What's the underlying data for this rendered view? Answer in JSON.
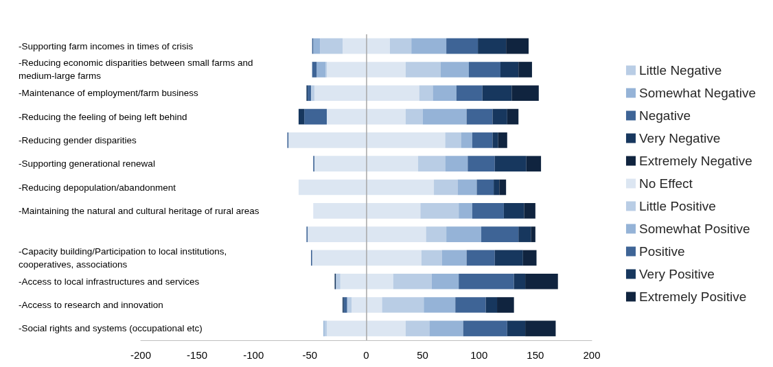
{
  "chart_data": {
    "type": "bar",
    "orientation": "horizontal",
    "stacked": true,
    "categories": [
      "-Supporting farm incomes in times of crisis",
      "-Reducing economic disparities between small farms and medium-large farms",
      "-Maintenance of employment/farm business",
      "-Reducing the feeling of being left behind",
      "-Reducing gender disparities",
      "-Supporting generational renewal",
      "-Reducing depopulation/abandonment",
      "-Maintaining the natural and cultural heritage of rural areas",
      null,
      "-Capacity building/Participation to local institutions, cooperatives, associations",
      "-Access to local infrastructures and services",
      "-Access to research and innovation",
      "-Social rights and systems (occupational etc)"
    ],
    "series": [
      {
        "color": "#dce6f2",
        "values": [
          -21,
          -35,
          -46,
          -35,
          -69,
          -46,
          -60,
          -47,
          -52,
          -48,
          -23,
          -13,
          -35
        ]
      },
      {
        "name": "Little Negative",
        "color": "#b9cde5",
        "values": [
          -20,
          -1,
          -3,
          0,
          0,
          0,
          0,
          0,
          0,
          0,
          -4,
          -4,
          -2
        ]
      },
      {
        "name": "Somewhat Negative",
        "color": "#95b3d7",
        "values": [
          -6,
          -8,
          0,
          0,
          0,
          0,
          0,
          0,
          0,
          0,
          0,
          0,
          -1
        ]
      },
      {
        "name": "Negative",
        "color": "#3e6496",
        "values": [
          -1,
          -4,
          -3,
          -20,
          -1,
          -1,
          0,
          0,
          -1,
          -1,
          0,
          -3,
          0
        ]
      },
      {
        "name": "Very Negative",
        "color": "#17375e",
        "values": [
          0,
          0,
          -1,
          -5,
          0,
          0,
          0,
          0,
          0,
          0,
          -1,
          -1,
          0
        ]
      },
      {
        "name": "Extremely Negative",
        "color": "#10243f",
        "values": [
          0,
          0,
          0,
          0,
          0,
          0,
          0,
          0,
          0,
          0,
          0,
          0,
          0
        ]
      },
      {
        "name": "No Effect",
        "color": "#dce6f2",
        "values": [
          21,
          35,
          47,
          35,
          70,
          46,
          60,
          48,
          53,
          49,
          24,
          14,
          35
        ]
      },
      {
        "name": "Little Positive",
        "color": "#b9cde5",
        "values": [
          19,
          31,
          12,
          15,
          14,
          24,
          21,
          34,
          18,
          18,
          34,
          37,
          21
        ]
      },
      {
        "name": "Somewhat Positive",
        "color": "#95b3d7",
        "values": [
          31,
          25,
          21,
          39,
          10,
          20,
          17,
          12,
          31,
          22,
          24,
          28,
          30
        ]
      },
      {
        "name": "Positive",
        "color": "#3e6496",
        "values": [
          28,
          28,
          23,
          23,
          18,
          24,
          15,
          28,
          33,
          25,
          49,
          27,
          39
        ]
      },
      {
        "name": "Very Positive",
        "color": "#17375e",
        "values": [
          25,
          16,
          26,
          13,
          5,
          28,
          5,
          18,
          11,
          25,
          10,
          10,
          16
        ]
      },
      {
        "name": "Extremely Positive",
        "color": "#10243f",
        "values": [
          20,
          12,
          24,
          10,
          8,
          13,
          6,
          10,
          4,
          12,
          29,
          15,
          27
        ]
      }
    ],
    "xlim": [
      -200,
      200
    ],
    "xticks": [
      -200,
      -150,
      -100,
      -50,
      0,
      50,
      100,
      150,
      200
    ],
    "ref_lines": [
      {
        "axis": "x",
        "value": 0,
        "color": "#a6a6a6"
      }
    ],
    "grid": false,
    "legend": "right"
  }
}
